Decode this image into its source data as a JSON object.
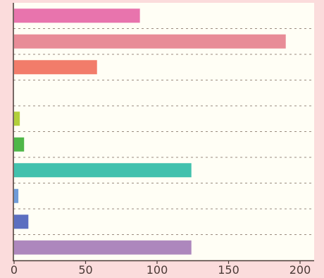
{
  "chart_data": {
    "type": "bar",
    "orientation": "horizontal",
    "categories": [
      "",
      "",
      "",
      "",
      "",
      "",
      "",
      "",
      "",
      ""
    ],
    "values": [
      88,
      190,
      58,
      0,
      4,
      7,
      124,
      3,
      10,
      124
    ],
    "colors": [
      "#e874ad",
      "#e88c97",
      "#f27c6a",
      "#d8c94a",
      "#b2cf3a",
      "#4fb748",
      "#42c1ad",
      "#6f9bd8",
      "#5c6fc0",
      "#ad87bd"
    ],
    "title": "",
    "xlabel": "",
    "ylabel": "",
    "xlim": [
      0,
      210
    ],
    "xticks": [
      0,
      50,
      100,
      150,
      200
    ],
    "grid": "horizontal dashed separators",
    "legend": "none",
    "plot_background": "#fffef5",
    "page_background": "#fbdcdc"
  }
}
